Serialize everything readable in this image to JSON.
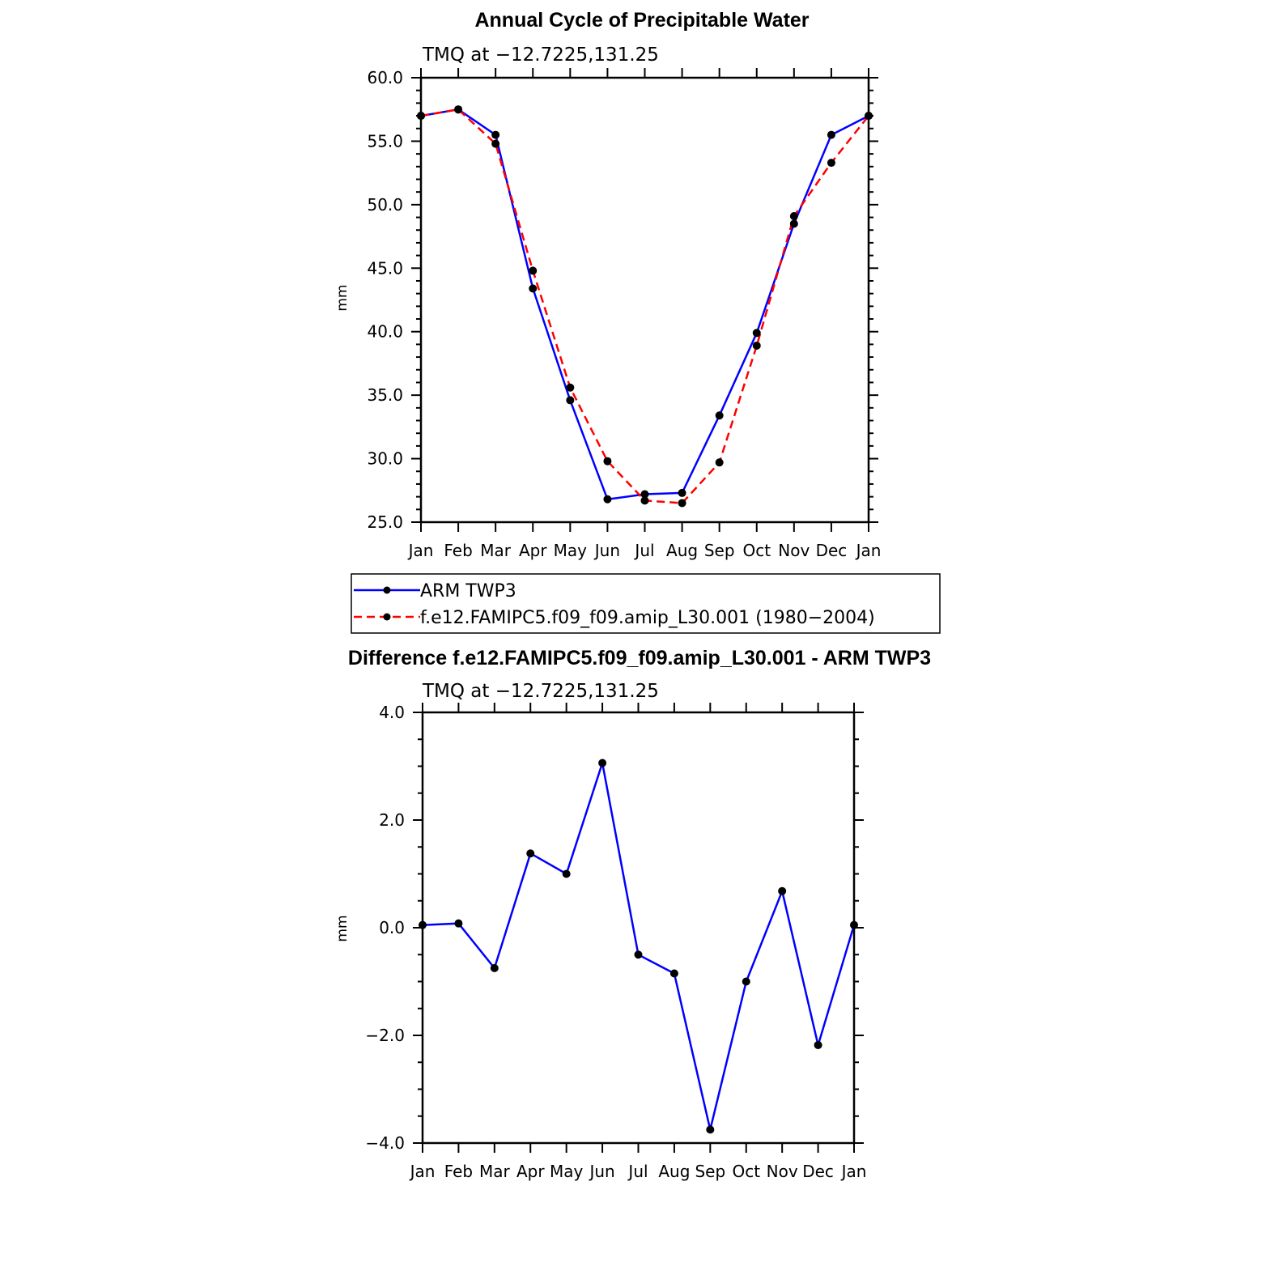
{
  "chart_data": [
    {
      "type": "line",
      "title": "Annual Cycle of Precipitable Water",
      "subtitle": "TMQ at −12.7225,131.25",
      "xlabel": "",
      "ylabel": "mm",
      "ylim": [
        25.0,
        60.0
      ],
      "yticks": [
        25.0,
        30.0,
        35.0,
        40.0,
        45.0,
        50.0,
        55.0,
        60.0
      ],
      "ytick_labels": [
        "25.0",
        "30.0",
        "35.0",
        "40.0",
        "45.0",
        "50.0",
        "55.0",
        "60.0"
      ],
      "categories": [
        "Jan",
        "Feb",
        "Mar",
        "Apr",
        "May",
        "Jun",
        "Jul",
        "Aug",
        "Sep",
        "Oct",
        "Nov",
        "Dec",
        "Jan"
      ],
      "series": [
        {
          "name": "ARM TWP3",
          "color": "#0000ff",
          "dash": "solid",
          "values": [
            57.0,
            57.5,
            55.5,
            43.4,
            34.6,
            26.8,
            27.2,
            27.3,
            33.4,
            39.9,
            48.5,
            55.5,
            57.0
          ]
        },
        {
          "name": "f.e12.FAMIPC5.f09_f09.amip_L30.001 (1980−2004)",
          "color": "#ff0000",
          "dash": "dashed",
          "values": [
            57.0,
            57.5,
            54.8,
            44.8,
            35.6,
            29.8,
            26.7,
            26.5,
            29.7,
            38.9,
            49.1,
            53.3,
            57.0
          ]
        }
      ],
      "legend": "below"
    },
    {
      "type": "line",
      "title": "Difference f.e12.FAMIPC5.f09_f09.amip_L30.001 - ARM TWP3",
      "subtitle": "TMQ at −12.7225,131.25",
      "xlabel": "",
      "ylabel": "mm",
      "ylim": [
        -4.0,
        4.0
      ],
      "yticks": [
        -4.0,
        -2.0,
        0.0,
        2.0,
        4.0
      ],
      "ytick_labels": [
        "−4.0",
        "−2.0",
        "0.0",
        "2.0",
        "4.0"
      ],
      "categories": [
        "Jan",
        "Feb",
        "Mar",
        "Apr",
        "May",
        "Jun",
        "Jul",
        "Aug",
        "Sep",
        "Oct",
        "Nov",
        "Dec",
        "Jan"
      ],
      "series": [
        {
          "name": "difference",
          "color": "#0000ff",
          "dash": "solid",
          "values": [
            0.05,
            0.08,
            -0.75,
            1.38,
            1.0,
            3.06,
            -0.5,
            -0.85,
            -3.75,
            -1.0,
            0.68,
            -2.18,
            0.05
          ]
        }
      ]
    }
  ]
}
